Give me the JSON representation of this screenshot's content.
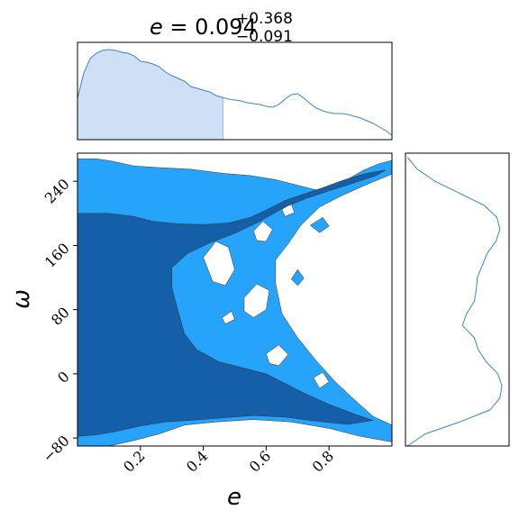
{
  "chart_data": [
    {
      "type": "area",
      "panel": "marginal-e",
      "title": {
        "symbol": "e",
        "prefix": " = ",
        "value": "0.094",
        "upper": "+0.368",
        "lower": "−0.091"
      },
      "xlim": [
        0.0,
        1.0
      ],
      "x": [
        0.0,
        0.02,
        0.04,
        0.06,
        0.08,
        0.1,
        0.12,
        0.14,
        0.16,
        0.18,
        0.2,
        0.22,
        0.24,
        0.26,
        0.28,
        0.3,
        0.32,
        0.34,
        0.36,
        0.38,
        0.4,
        0.42,
        0.44,
        0.46,
        0.48,
        0.5,
        0.52,
        0.54,
        0.56,
        0.58,
        0.6,
        0.62,
        0.64,
        0.66,
        0.68,
        0.7,
        0.72,
        0.74,
        0.76,
        0.78,
        0.8,
        0.82,
        0.84,
        0.86,
        0.88,
        0.9,
        0.92,
        0.94,
        0.96,
        0.98,
        1.0
      ],
      "density": [
        0.46,
        0.74,
        0.9,
        0.96,
        0.99,
        1.0,
        0.99,
        0.97,
        0.96,
        0.93,
        0.87,
        0.86,
        0.84,
        0.81,
        0.75,
        0.71,
        0.68,
        0.65,
        0.59,
        0.57,
        0.55,
        0.53,
        0.49,
        0.47,
        0.45,
        0.44,
        0.43,
        0.41,
        0.4,
        0.39,
        0.37,
        0.36,
        0.39,
        0.45,
        0.5,
        0.51,
        0.46,
        0.4,
        0.35,
        0.32,
        0.3,
        0.29,
        0.29,
        0.28,
        0.26,
        0.24,
        0.21,
        0.18,
        0.14,
        0.1,
        0.05
      ],
      "shaded_range": [
        0.0,
        0.462
      ],
      "line_color": "#3b86cc",
      "fill_color": "#cfe0f6"
    },
    {
      "type": "heatmap",
      "panel": "joint-e-omega",
      "xlabel": "e",
      "ylabel": "ω",
      "xlim": [
        0.0,
        1.0
      ],
      "ylim": [
        -90,
        275
      ],
      "xticks": [
        0.2,
        0.4,
        0.6,
        0.8
      ],
      "xtick_labels": [
        "0.2",
        "0.4",
        "0.6",
        "0.8"
      ],
      "yticks": [
        -80,
        0,
        80,
        160,
        240
      ],
      "ytick_labels": [
        "−80",
        "0",
        "80",
        "160",
        "240"
      ],
      "levels": [
        "outer",
        "inner"
      ],
      "level_colors": {
        "outer": "#26a4fb",
        "inner": "#155fa9"
      },
      "outer_region": [
        [
          0.0,
          268
        ],
        [
          0.06,
          268
        ],
        [
          0.11,
          265
        ],
        [
          0.18,
          259
        ],
        [
          0.26,
          257
        ],
        [
          0.36,
          255
        ],
        [
          0.46,
          250
        ],
        [
          0.55,
          247
        ],
        [
          0.63,
          242
        ],
        [
          0.7,
          235
        ],
        [
          0.77,
          228
        ],
        [
          0.84,
          238
        ],
        [
          0.91,
          254
        ],
        [
          0.96,
          262
        ],
        [
          1.0,
          266
        ],
        [
          1.0,
          249
        ],
        [
          0.92,
          236
        ],
        [
          0.84,
          222
        ],
        [
          0.77,
          208
        ],
        [
          0.71,
          185
        ],
        [
          0.67,
          162
        ],
        [
          0.63,
          142
        ],
        [
          0.63,
          112
        ],
        [
          0.65,
          75
        ],
        [
          0.7,
          45
        ],
        [
          0.76,
          16
        ],
        [
          0.82,
          -10
        ],
        [
          0.88,
          -32
        ],
        [
          0.94,
          -53
        ],
        [
          1.0,
          -64
        ],
        [
          1.0,
          -85
        ],
        [
          0.9,
          -78
        ],
        [
          0.8,
          -68
        ],
        [
          0.68,
          -60
        ],
        [
          0.56,
          -57
        ],
        [
          0.44,
          -60
        ],
        [
          0.34,
          -64
        ],
        [
          0.26,
          -75
        ],
        [
          0.17,
          -84
        ],
        [
          0.1,
          -90
        ],
        [
          0.0,
          -90
        ]
      ],
      "outer_holes": [
        [
          [
            0.4,
            145
          ],
          [
            0.44,
            165
          ],
          [
            0.48,
            158
          ],
          [
            0.5,
            130
          ],
          [
            0.47,
            110
          ],
          [
            0.43,
            115
          ]
        ],
        [
          [
            0.53,
            95
          ],
          [
            0.57,
            112
          ],
          [
            0.61,
            104
          ],
          [
            0.6,
            80
          ],
          [
            0.56,
            70
          ],
          [
            0.53,
            78
          ]
        ],
        [
          [
            0.56,
            178
          ],
          [
            0.59,
            190
          ],
          [
            0.62,
            180
          ],
          [
            0.6,
            165
          ],
          [
            0.57,
            166
          ]
        ],
        [
          [
            0.6,
            25
          ],
          [
            0.64,
            36
          ],
          [
            0.67,
            24
          ],
          [
            0.64,
            10
          ],
          [
            0.61,
            13
          ]
        ],
        [
          [
            0.68,
            118
          ],
          [
            0.7,
            130
          ],
          [
            0.72,
            119
          ],
          [
            0.7,
            110
          ]
        ],
        [
          [
            0.65,
            205
          ],
          [
            0.68,
            212
          ],
          [
            0.69,
            201
          ],
          [
            0.66,
            196
          ]
        ],
        [
          [
            0.74,
            185
          ],
          [
            0.78,
            195
          ],
          [
            0.8,
            184
          ],
          [
            0.77,
            176
          ]
        ],
        [
          [
            0.75,
            -5
          ],
          [
            0.78,
            2
          ],
          [
            0.8,
            -10
          ],
          [
            0.77,
            -18
          ]
        ],
        [
          [
            0.46,
            70
          ],
          [
            0.49,
            78
          ],
          [
            0.5,
            68
          ],
          [
            0.47,
            62
          ]
        ]
      ],
      "inner_region": [
        [
          0.0,
          200
        ],
        [
          0.1,
          200
        ],
        [
          0.18,
          196
        ],
        [
          0.24,
          190
        ],
        [
          0.32,
          187
        ],
        [
          0.4,
          186
        ],
        [
          0.48,
          188
        ],
        [
          0.55,
          195
        ],
        [
          0.61,
          206
        ],
        [
          0.66,
          216
        ],
        [
          0.72,
          224
        ],
        [
          0.78,
          232
        ],
        [
          0.85,
          242
        ],
        [
          0.92,
          250
        ],
        [
          0.98,
          254
        ],
        [
          0.95,
          247
        ],
        [
          0.88,
          238
        ],
        [
          0.8,
          228
        ],
        [
          0.73,
          219
        ],
        [
          0.66,
          208
        ],
        [
          0.58,
          190
        ],
        [
          0.5,
          175
        ],
        [
          0.42,
          163
        ],
        [
          0.35,
          150
        ],
        [
          0.3,
          132
        ],
        [
          0.3,
          108
        ],
        [
          0.32,
          78
        ],
        [
          0.34,
          50
        ],
        [
          0.38,
          30
        ],
        [
          0.45,
          15
        ],
        [
          0.52,
          8
        ],
        [
          0.6,
          0
        ],
        [
          0.66,
          -12
        ],
        [
          0.72,
          -24
        ],
        [
          0.8,
          -38
        ],
        [
          0.88,
          -50
        ],
        [
          0.94,
          -58
        ],
        [
          0.86,
          -63
        ],
        [
          0.76,
          -59
        ],
        [
          0.66,
          -54
        ],
        [
          0.56,
          -52
        ],
        [
          0.46,
          -55
        ],
        [
          0.36,
          -58
        ],
        [
          0.28,
          -60
        ],
        [
          0.2,
          -65
        ],
        [
          0.12,
          -72
        ],
        [
          0.06,
          -76
        ],
        [
          0.0,
          -78
        ]
      ],
      "marginal_omega": {
        "type": "line",
        "panel": "marginal-omega",
        "y": [
          -90,
          -75,
          -60,
          -45,
          -30,
          -15,
          0,
          15,
          30,
          45,
          60,
          75,
          90,
          105,
          120,
          135,
          150,
          165,
          180,
          195,
          210,
          225,
          240,
          255,
          270
        ],
        "density": [
          0.02,
          0.2,
          0.55,
          0.86,
          0.96,
          0.98,
          0.94,
          0.82,
          0.74,
          0.7,
          0.58,
          0.62,
          0.7,
          0.72,
          0.73,
          0.78,
          0.83,
          0.92,
          0.96,
          0.93,
          0.8,
          0.55,
          0.3,
          0.12,
          0.02
        ],
        "line_color": "#3b86cc"
      }
    }
  ]
}
